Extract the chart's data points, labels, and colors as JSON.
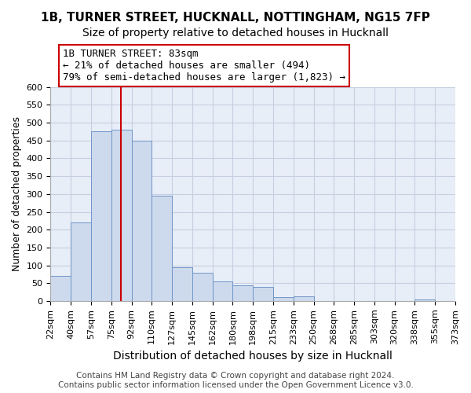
{
  "title": "1B, TURNER STREET, HUCKNALL, NOTTINGHAM, NG15 7FP",
  "subtitle": "Size of property relative to detached houses in Hucknall",
  "xlabel": "Distribution of detached houses by size in Hucknall",
  "ylabel": "Number of detached properties",
  "bin_labels": [
    "22sqm",
    "40sqm",
    "57sqm",
    "75sqm",
    "92sqm",
    "110sqm",
    "127sqm",
    "145sqm",
    "162sqm",
    "180sqm",
    "198sqm",
    "215sqm",
    "233sqm",
    "250sqm",
    "268sqm",
    "285sqm",
    "303sqm",
    "320sqm",
    "338sqm",
    "355sqm",
    "373sqm"
  ],
  "bar_values": [
    70,
    220,
    475,
    480,
    450,
    295,
    95,
    80,
    55,
    45,
    40,
    10,
    13,
    0,
    0,
    0,
    0,
    0,
    5,
    0
  ],
  "bar_color": "#cdd9ec",
  "bar_edge_color": "#7096c8",
  "vline_color": "#cc0000",
  "annotation_line1": "1B TURNER STREET: 83sqm",
  "annotation_line2": "← 21% of detached houses are smaller (494)",
  "annotation_line3": "79% of semi-detached houses are larger (1,823) →",
  "annotation_box_edge_color": "#cc0000",
  "ylim": [
    0,
    600
  ],
  "yticks": [
    0,
    50,
    100,
    150,
    200,
    250,
    300,
    350,
    400,
    450,
    500,
    550,
    600
  ],
  "footer_text": "Contains HM Land Registry data © Crown copyright and database right 2024.\nContains public sector information licensed under the Open Government Licence v3.0.",
  "plot_bg_color": "#e8eef8",
  "fig_bg_color": "#ffffff",
  "grid_color": "#c5cfe0",
  "title_fontsize": 11,
  "subtitle_fontsize": 10,
  "xlabel_fontsize": 10,
  "ylabel_fontsize": 9,
  "tick_fontsize": 8,
  "annotation_fontsize": 9,
  "footer_fontsize": 7.5,
  "vline_bin_index": 3,
  "n_bins": 20
}
